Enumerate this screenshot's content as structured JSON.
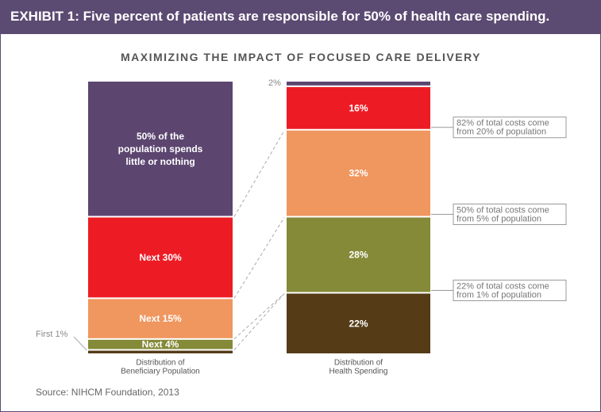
{
  "exhibit_title": "EXHIBIT 1: Five percent of patients are responsible for 50% of health care spending.",
  "source": "Source: NIHCM Foundation, 2013",
  "colors": {
    "header": "#5b4a72",
    "purple": "#5c4670",
    "red": "#ed1c24",
    "orange": "#f0965f",
    "olive": "#848a38",
    "brown": "#553c17"
  },
  "chart_data": {
    "type": "bar",
    "subtitle": "MAXIMIZING THE IMPACT OF FOCUSED CARE DELIVERY",
    "stacked": true,
    "ylim": [
      0,
      100
    ],
    "grid": false,
    "legend": "none",
    "categories": [
      [
        "Distribution of",
        "Beneficiary Population"
      ],
      [
        "Distribution of",
        "Health Spending"
      ]
    ],
    "series": [
      {
        "key": "first1",
        "values": [
          1,
          22
        ],
        "color": "#553c17",
        "labels": [
          "",
          "22%"
        ]
      },
      {
        "key": "next4",
        "values": [
          4,
          28
        ],
        "color": "#848a38",
        "labels": [
          "Next 4%",
          "28%"
        ]
      },
      {
        "key": "next15",
        "values": [
          15,
          32
        ],
        "color": "#f0965f",
        "labels": [
          "Next 15%",
          "32%"
        ]
      },
      {
        "key": "next30",
        "values": [
          30,
          16
        ],
        "color": "#ed1c24",
        "labels": [
          "Next 30%",
          "16%"
        ]
      },
      {
        "key": "bottom50",
        "values": [
          50,
          2
        ],
        "color": "#5c4670",
        "labels": [
          [
            "50% of the",
            "population spends",
            "little or nothing"
          ],
          ""
        ]
      }
    ],
    "side_labels": {
      "first": "First 1%",
      "two_percent": "2%"
    },
    "callouts": [
      {
        "lines": [
          "82% of total costs come",
          "from 20% of population"
        ],
        "cumulative_spending": 82
      },
      {
        "lines": [
          "50% of total costs come",
          "from 5% of population"
        ],
        "cumulative_spending": 50
      },
      {
        "lines": [
          "22% of total costs come",
          "from 1% of population"
        ],
        "cumulative_spending": 22
      }
    ]
  }
}
